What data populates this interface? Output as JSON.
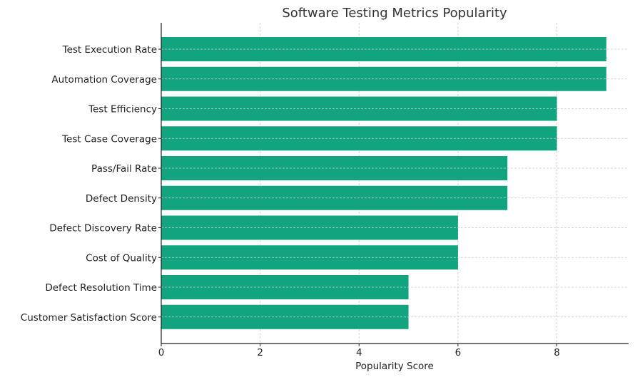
{
  "chart_data": {
    "type": "bar",
    "orientation": "horizontal",
    "title": "Software Testing Metrics Popularity",
    "xlabel": "Popularity Score",
    "ylabel": "",
    "categories": [
      "Test Execution Rate",
      "Automation Coverage",
      "Test Efficiency",
      "Test Case Coverage",
      "Pass/Fail Rate",
      "Defect Density",
      "Defect Discovery Rate",
      "Cost of Quality",
      "Defect Resolution Time",
      "Customer Satisfaction Score"
    ],
    "values": [
      9,
      9,
      8,
      8,
      7,
      7,
      6,
      6,
      5,
      5
    ],
    "xlim": [
      0,
      9.45
    ],
    "xticks": [
      0,
      2,
      4,
      6,
      8
    ],
    "xtick_labels": [
      "0",
      "2",
      "4",
      "6",
      "8"
    ],
    "grid": true,
    "grid_style": "dashed",
    "legend": null,
    "bar_color": "#12a37f"
  }
}
